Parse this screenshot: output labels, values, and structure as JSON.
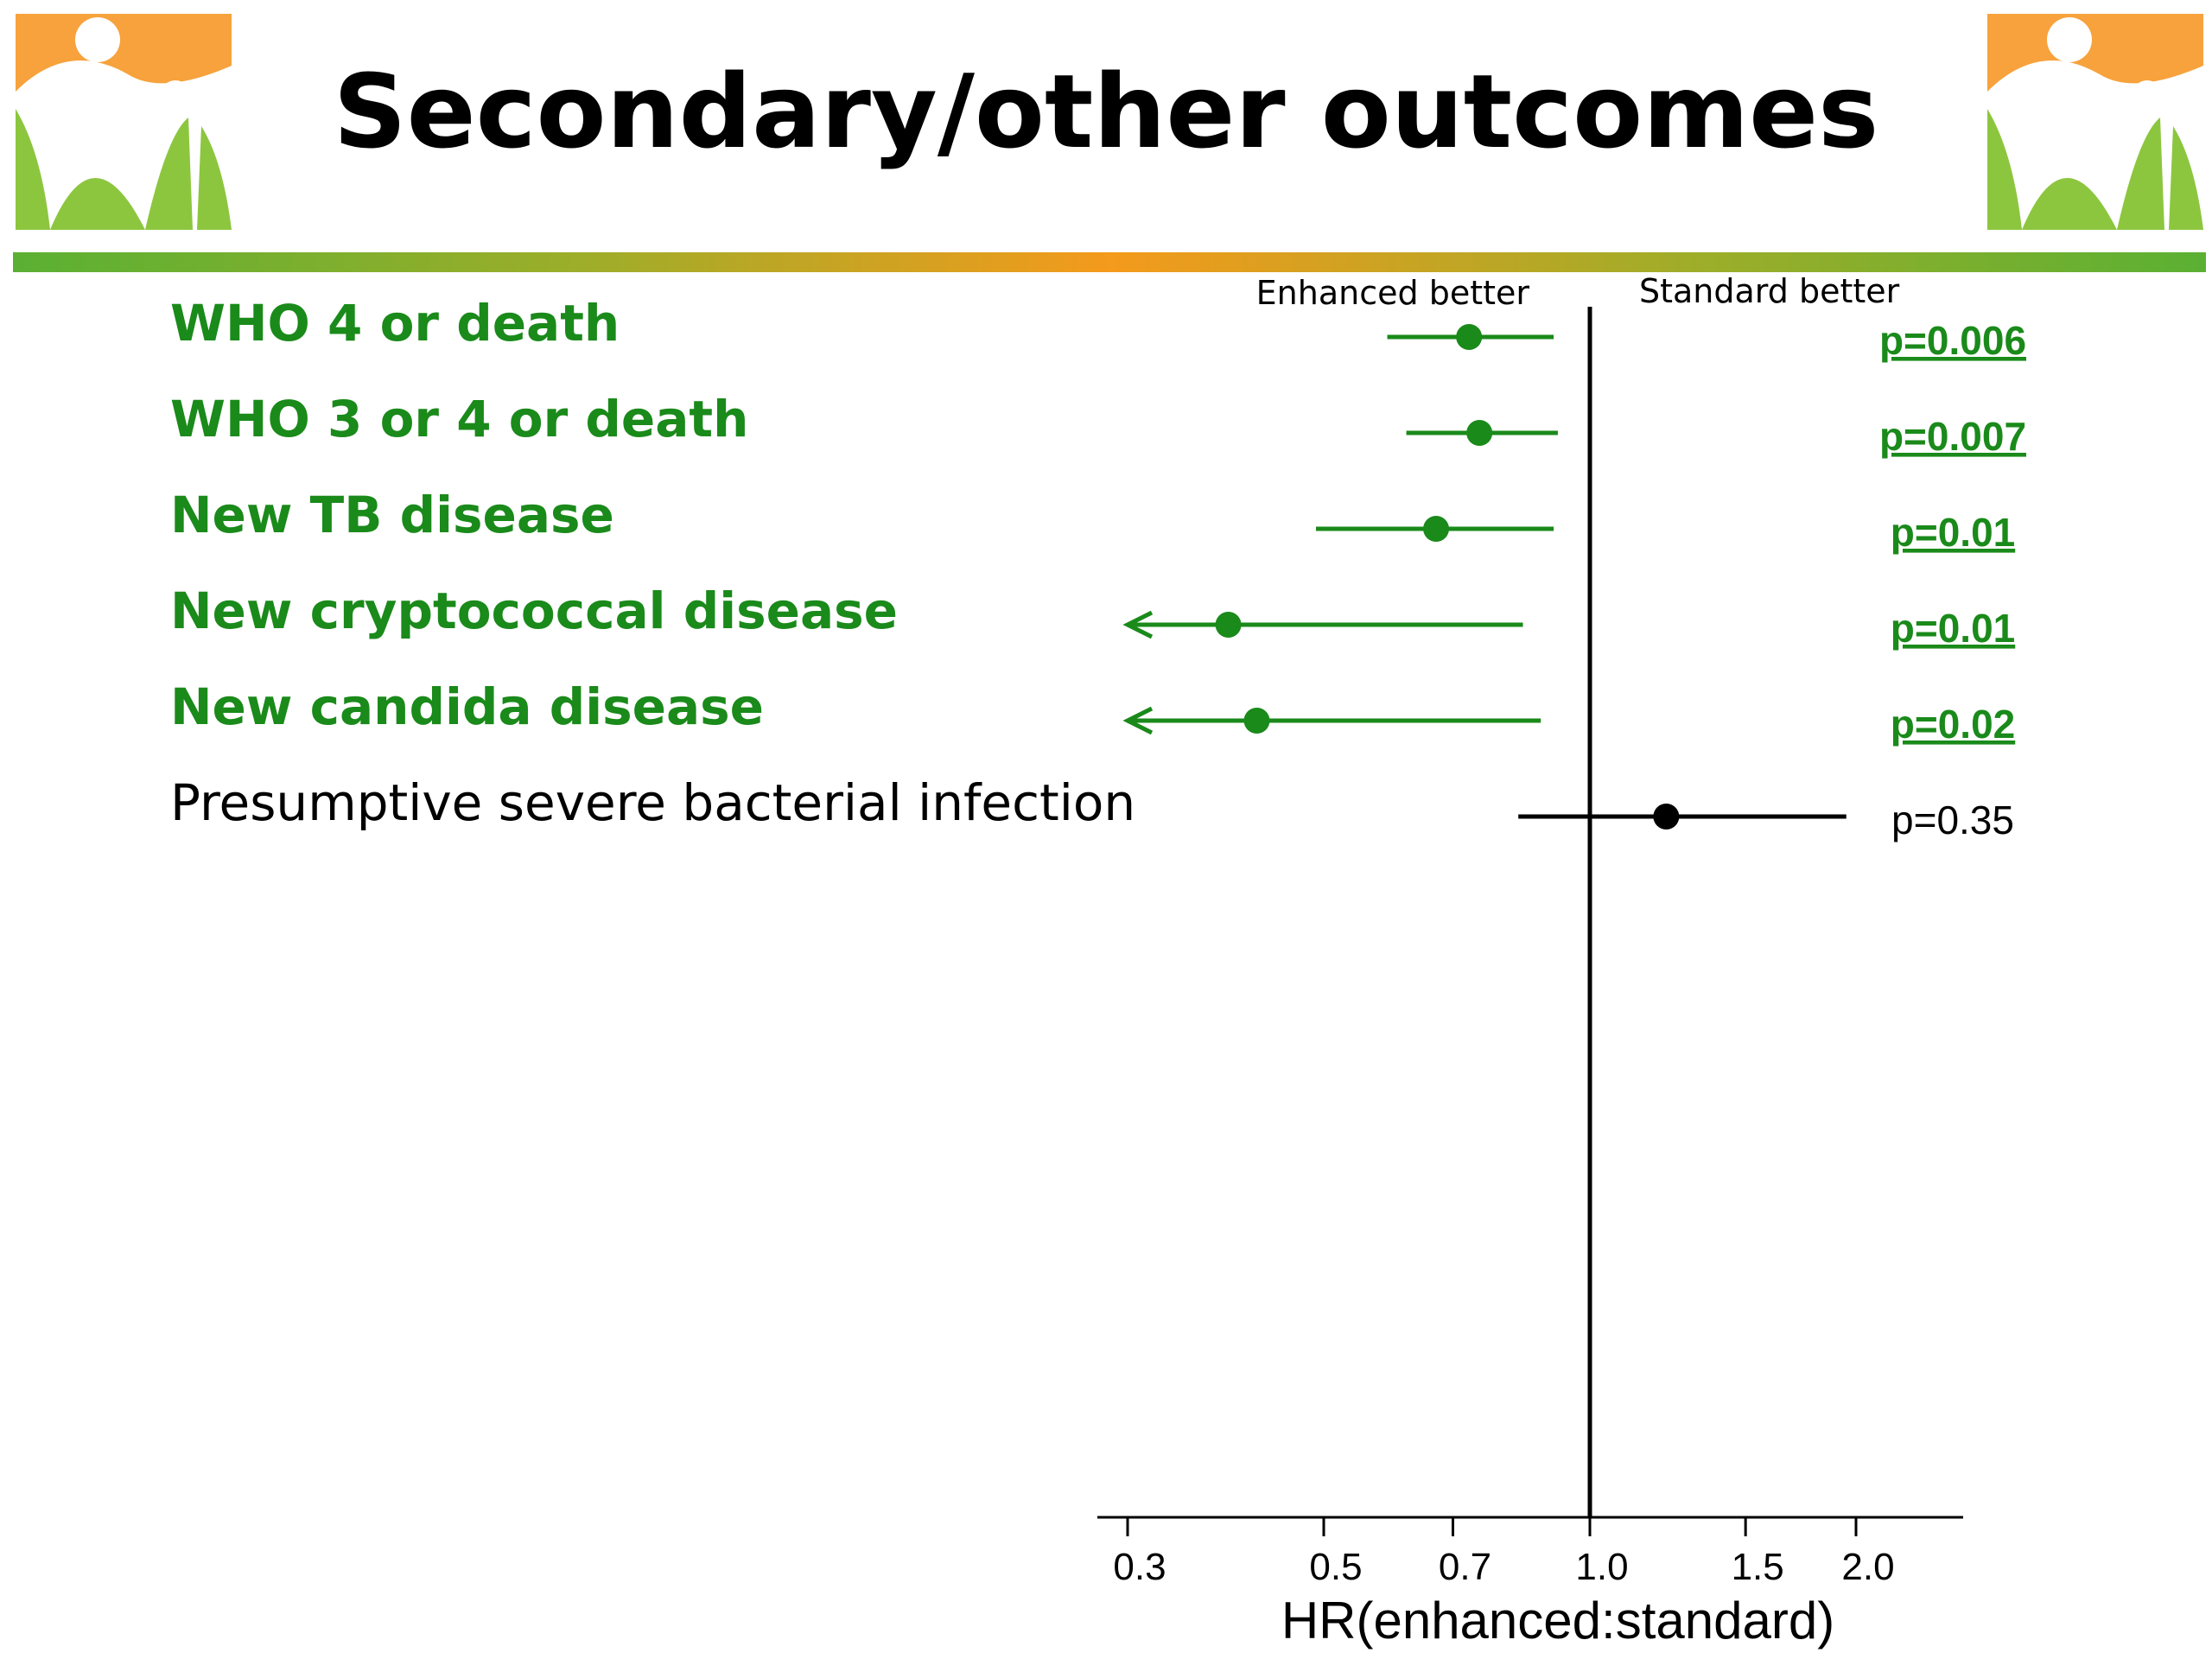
{
  "slide": {
    "title": "Secondary/other outcomes",
    "colors": {
      "significant": "#1a8a1a",
      "nonsignificant": "#000000",
      "logo_orange": "#f7a23c",
      "logo_green": "#8cc63f",
      "rule_green": "#5ab033",
      "rule_orange": "#f49a1c"
    },
    "logos": [
      "family-logo-icon",
      "family-logo-icon"
    ]
  },
  "chart_data": {
    "type": "forest",
    "xscale": "log",
    "xlabel": "HR(enhanced:standard)",
    "xlim": [
      0.28,
      2.4
    ],
    "xticks": [
      0.3,
      0.5,
      0.7,
      1.0,
      1.5,
      2.0
    ],
    "xtick_labels": [
      "0.3",
      "0.5",
      "0.7",
      "1.0",
      "1.5",
      "2.0"
    ],
    "reference_line": 1.0,
    "direction_labels": {
      "left": "Enhanced better",
      "right": "Standard better"
    },
    "rows": [
      {
        "label": "WHO 4 or death",
        "hr": 0.73,
        "lower": 0.59,
        "upper": 0.91,
        "lower_truncated": false,
        "p": "p=0.006",
        "significant": true
      },
      {
        "label": "WHO 3 or 4 or death",
        "hr": 0.75,
        "lower": 0.62,
        "upper": 0.92,
        "lower_truncated": false,
        "p": "p=0.007",
        "significant": true
      },
      {
        "label": "New TB disease",
        "hr": 0.67,
        "lower": 0.49,
        "upper": 0.91,
        "lower_truncated": false,
        "p": "p=0.01",
        "significant": true
      },
      {
        "label": "New cryptococcal disease",
        "hr": 0.39,
        "lower": 0.3,
        "upper": 0.84,
        "lower_truncated": true,
        "p": "p=0.01",
        "significant": true
      },
      {
        "label": "New candida disease",
        "hr": 0.42,
        "lower": 0.3,
        "upper": 0.88,
        "lower_truncated": true,
        "p": "p=0.02",
        "significant": true
      },
      {
        "label": "Presumptive severe bacterial infection",
        "hr": 1.22,
        "lower": 0.83,
        "upper": 1.95,
        "lower_truncated": false,
        "p": "p=0.35",
        "significant": false
      }
    ]
  }
}
